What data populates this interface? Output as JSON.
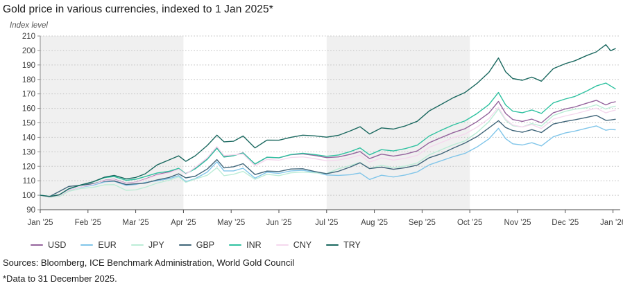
{
  "title": "Gold price in various currencies, indexed to 1 Jan 2025*",
  "y_axis_label": "Index level",
  "sources": "Sources: Bloomberg, ICE Benchmark Administration, World Gold Council",
  "footnote": "*Data to 31 December 2025.",
  "colors": {
    "band": "#f0f0f0",
    "gridline": "#bfbfbf",
    "left_spine": "#8c8c8c",
    "bottom_axis": "#4d4d4d",
    "tick_text": "#404040"
  },
  "legend": [
    {
      "label": "USD",
      "color": "#94639c"
    },
    {
      "label": "EUR",
      "color": "#80c5e9"
    },
    {
      "label": "JPY",
      "color": "#bcedd7"
    },
    {
      "label": "GBP",
      "color": "#3f6579"
    },
    {
      "label": "INR",
      "color": "#2ec1a0"
    },
    {
      "label": "CNY",
      "color": "#f5d8ee"
    },
    {
      "label": "TRY",
      "color": "#1a685f"
    }
  ],
  "chart_data": {
    "type": "line",
    "title": "Gold price in various currencies, indexed to 1 Jan 2025*",
    "xlabel": "",
    "ylabel": "Index level",
    "ylim": [
      90,
      210
    ],
    "xlim_months": [
      0,
      12.15
    ],
    "grid": "horizontal-dotted",
    "legend_position": "bottom",
    "y_ticks": [
      90,
      100,
      110,
      120,
      130,
      140,
      150,
      160,
      170,
      180,
      190,
      200,
      210
    ],
    "x_tick_labels": [
      "Jan ’25",
      "Feb ’25",
      "Mar ’25",
      "Apr ’25",
      "May ’25",
      "Jun ’25",
      "Jul ’25",
      "Aug ’25",
      "Sep ’25",
      "Oct ’25",
      "Nov ’25",
      "Dec ’25",
      "Jan ’26"
    ],
    "shaded_bands_months": [
      [
        0,
        3
      ],
      [
        6,
        9
      ]
    ],
    "x_months": [
      0,
      0.2,
      0.4,
      0.6,
      0.85,
      1.1,
      1.35,
      1.55,
      1.8,
      2.0,
      2.2,
      2.45,
      2.7,
      2.9,
      3.05,
      3.25,
      3.5,
      3.7,
      3.85,
      4.05,
      4.25,
      4.5,
      4.75,
      5.0,
      5.25,
      5.5,
      5.75,
      6.0,
      6.25,
      6.5,
      6.7,
      6.9,
      7.15,
      7.4,
      7.65,
      7.9,
      8.15,
      8.4,
      8.65,
      8.9,
      9.15,
      9.4,
      9.6,
      9.75,
      9.9,
      10.1,
      10.3,
      10.5,
      10.75,
      11.0,
      11.2,
      11.45,
      11.65,
      11.85,
      11.95,
      12.05
    ],
    "series": [
      {
        "name": "USD",
        "color": "#94639c",
        "values": [
          100,
          98.7,
          99.6,
          103.5,
          105.8,
          107.5,
          110.3,
          111.0,
          108.3,
          109.0,
          111.2,
          114.3,
          116.0,
          118.5,
          114.9,
          118.5,
          125.0,
          132.8,
          126.8,
          127.5,
          129.3,
          121.5,
          126.2,
          125.8,
          128.0,
          128.6,
          127.5,
          126.0,
          126.5,
          128.3,
          130.2,
          125.3,
          128.4,
          127.0,
          128.4,
          130.6,
          136.3,
          139.8,
          143.2,
          146.0,
          150.8,
          156.8,
          164.8,
          156.5,
          152.3,
          151.0,
          152.6,
          150.0,
          157.0,
          159.6,
          161.0,
          163.6,
          165.6,
          162.4,
          163.8,
          164.6
        ]
      },
      {
        "name": "EUR",
        "color": "#80c5e9",
        "values": [
          100,
          98.9,
          100.0,
          103.8,
          105.6,
          106.9,
          109.2,
          109.7,
          106.8,
          107.4,
          108.8,
          110.1,
          111.4,
          113.5,
          109.4,
          111.5,
          116.0,
          123.1,
          116.8,
          116.8,
          118.7,
          111.8,
          115.9,
          115.1,
          116.8,
          117.2,
          115.9,
          114.0,
          113.7,
          114.2,
          115.4,
          110.9,
          113.8,
          112.6,
          114.0,
          116.1,
          121.0,
          123.8,
          126.6,
          128.9,
          133.3,
          138.9,
          146.2,
          139.1,
          135.5,
          134.7,
          136.3,
          134.1,
          140.4,
          143.0,
          144.3,
          146.3,
          147.9,
          144.9,
          145.5,
          145.2
        ]
      },
      {
        "name": "JPY",
        "color": "#bcedd7",
        "values": [
          100,
          98.7,
          99.1,
          102.7,
          104.7,
          105.4,
          107.2,
          107.3,
          103.4,
          103.7,
          105.5,
          108.4,
          110.3,
          112.7,
          108.9,
          111.2,
          113.8,
          119.0,
          113.5,
          114.5,
          116.5,
          111.0,
          114.5,
          113.5,
          115.5,
          116.0,
          115.5,
          115.0,
          118.3,
          120.6,
          122.6,
          118.4,
          120.7,
          119.0,
          120.2,
          122.2,
          127.9,
          131.4,
          134.8,
          137.5,
          143.3,
          150.8,
          159.5,
          151.8,
          148.0,
          147.2,
          149.5,
          147.8,
          155.1,
          158.0,
          159.4,
          160.5,
          162.5,
          159.5,
          160.8,
          161.5
        ]
      },
      {
        "name": "GBP",
        "color": "#3f6579",
        "values": [
          100,
          99.2,
          102.6,
          106.1,
          106.9,
          108.0,
          109.7,
          109.9,
          107.4,
          107.9,
          108.4,
          110.6,
          112.3,
          114.8,
          112.0,
          113.2,
          118.1,
          124.6,
          118.9,
          119.7,
          121.8,
          114.3,
          116.7,
          116.4,
          118.1,
          118.3,
          116.4,
          114.9,
          116.6,
          119.6,
          122.4,
          118.4,
          119.4,
          117.9,
          119.0,
          120.8,
          125.9,
          128.6,
          132.5,
          136.1,
          140.5,
          146.5,
          151.5,
          146.8,
          144.7,
          143.5,
          145.3,
          143.3,
          149.2,
          151.0,
          152.1,
          153.8,
          155.2,
          151.7,
          152.0,
          152.5
        ]
      },
      {
        "name": "INR",
        "color": "#2ec1a0",
        "values": [
          100,
          99.2,
          100.3,
          104.5,
          107.0,
          109.2,
          112.2,
          112.9,
          110.3,
          111.0,
          112.9,
          115.4,
          116.6,
          118.6,
          114.8,
          118.3,
          124.8,
          132.4,
          126.4,
          127.3,
          129.2,
          121.6,
          126.3,
          125.9,
          128.1,
          129.0,
          128.1,
          126.9,
          127.8,
          130.2,
          132.7,
          127.9,
          131.5,
          130.6,
          132.2,
          134.6,
          140.9,
          144.9,
          148.5,
          151.4,
          156.4,
          162.6,
          171.0,
          162.4,
          158.1,
          157.0,
          158.9,
          156.5,
          163.8,
          166.5,
          168.2,
          172.0,
          175.5,
          177.5,
          175.5,
          173.5
        ]
      },
      {
        "name": "CNY",
        "color": "#f5d8ee",
        "values": [
          100,
          98.8,
          99.7,
          103.6,
          105.8,
          107.4,
          110.1,
          110.8,
          108.1,
          108.8,
          110.9,
          113.9,
          115.5,
          117.9,
          114.5,
          119.3,
          125.9,
          133.6,
          127.4,
          127.9,
          128.5,
          120.3,
          124.7,
          124.2,
          126.1,
          126.5,
          125.3,
          123.8,
          124.3,
          126.0,
          127.8,
          122.9,
          125.8,
          124.3,
          125.5,
          127.6,
          133.1,
          136.4,
          139.7,
          142.3,
          147.0,
          152.9,
          160.7,
          152.6,
          148.5,
          147.2,
          148.8,
          146.1,
          152.6,
          154.8,
          156.2,
          158.4,
          160.2,
          156.9,
          158.0,
          158.8
        ]
      },
      {
        "name": "TRY",
        "color": "#1a685f",
        "values": [
          100,
          99.1,
          100.3,
          104.5,
          107.1,
          109.2,
          112.5,
          113.7,
          111.3,
          112.3,
          114.8,
          121.0,
          124.4,
          127.2,
          123.4,
          127.3,
          134.4,
          141.5,
          136.9,
          137.3,
          140.9,
          132.7,
          138.1,
          138.0,
          140.0,
          141.5,
          141.0,
          140.1,
          141.4,
          144.5,
          147.3,
          142.3,
          146.5,
          145.7,
          147.9,
          151.1,
          158.2,
          162.7,
          167.3,
          171.0,
          177.2,
          184.9,
          194.8,
          185.3,
          180.6,
          179.4,
          181.6,
          178.8,
          187.5,
          190.9,
          192.9,
          196.5,
          199.0,
          204.0,
          199.8,
          201.3
        ]
      }
    ]
  }
}
